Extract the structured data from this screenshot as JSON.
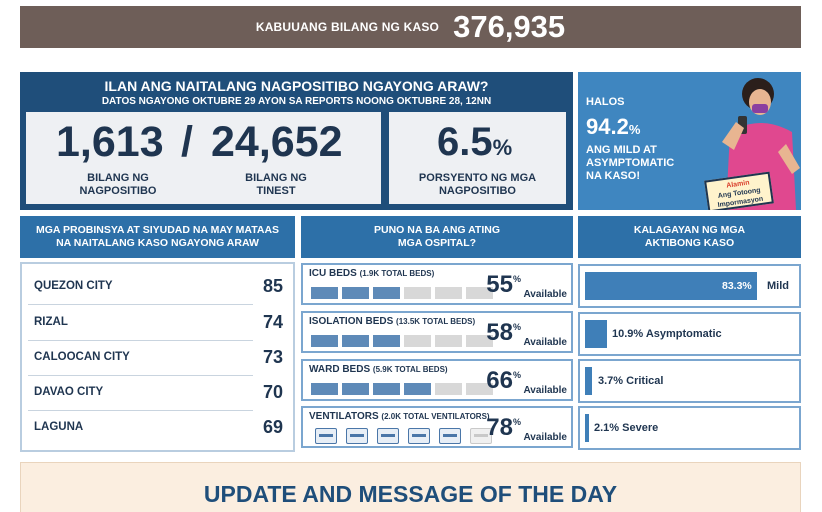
{
  "total": {
    "label": "KABUUANG BILANG NG KASO",
    "value": "376,935"
  },
  "today": {
    "question": "ILAN ANG NAITALANG NAGPOSITIBO NGAYONG ARAW?",
    "subtitle": "DATOS NGAYONG OKTUBRE 29 AYON SA REPORTS NOONG OKTUBRE 28, 12NN",
    "positive": "1,613",
    "slash": "/",
    "tested": "24,652",
    "positive_label_1": "BILANG NG",
    "positive_label_2": "NAGPOSITIBO",
    "tested_label_1": "BILANG NG",
    "tested_label_2": "TINEST",
    "rate": "6.5",
    "rate_sign": "%",
    "rate_label_1": "PORSYENTO NG MGA",
    "rate_label_2": "NAGPOSITIBO"
  },
  "promo": {
    "halos": "HALOS",
    "pct": "94.2",
    "pct_sign": "%",
    "desc_1": "ANG MILD AT",
    "desc_2": "ASYMPTOMATIC",
    "desc_3": "NA KASO!",
    "badge_1": "Alamin",
    "badge_2": "Ang Totoong",
    "badge_3": "Impormasyon"
  },
  "headers": {
    "provinces_1": "MGA PROBINSYA AT SIYUDAD NA MAY MATAAS",
    "provinces_2": "NA NAITALANG KASO NGAYONG ARAW",
    "hospitals_1": "PUNO NA BA ANG ATING",
    "hospitals_2": "MGA OSPITAL?",
    "status_1": "KALAGAYAN NG MGA",
    "status_2": "AKTIBONG KASO"
  },
  "provinces": [
    {
      "name": "QUEZON CITY",
      "count": "85"
    },
    {
      "name": "RIZAL",
      "count": "74"
    },
    {
      "name": "CALOOCAN CITY",
      "count": "73"
    },
    {
      "name": "DAVAO CITY",
      "count": "70"
    },
    {
      "name": "LAGUNA",
      "count": "69"
    }
  ],
  "hospitals": [
    {
      "title": "ICU BEDS",
      "total": "(1.9K TOTAL BEDS)",
      "pct": "55",
      "sign": "%",
      "avail": "Available",
      "filled_segments": 3,
      "segments": 6
    },
    {
      "title": "ISOLATION BEDS",
      "total": "(13.5K TOTAL BEDS)",
      "pct": "58",
      "sign": "%",
      "avail": "Available",
      "filled_segments": 3,
      "segments": 6
    },
    {
      "title": "WARD BEDS",
      "total": "(5.9K TOTAL BEDS)",
      "pct": "66",
      "sign": "%",
      "avail": "Available",
      "filled_segments": 4,
      "segments": 6
    },
    {
      "title": "VENTILATORS",
      "total": "(2.0K TOTAL VENTILATORS)",
      "pct": "78",
      "sign": "%",
      "avail": "Available",
      "filled_segments": 5,
      "segments": 6
    }
  ],
  "status": [
    {
      "label": "83.3%",
      "name": "Mild",
      "share": 0.833
    },
    {
      "label": "10.9% Asymptomatic",
      "share": 0.109
    },
    {
      "label": "3.7% Critical",
      "share": 0.037
    },
    {
      "label": "2.1% Severe",
      "share": 0.021
    }
  ],
  "update": {
    "title": "UPDATE AND MESSAGE OF THE DAY"
  },
  "colors": {
    "brown": "#6e5e58",
    "navy": "#1f4e7a",
    "blue": "#2d70a8",
    "light_blue": "#3f86c0",
    "bar": "#5e8ab8"
  }
}
